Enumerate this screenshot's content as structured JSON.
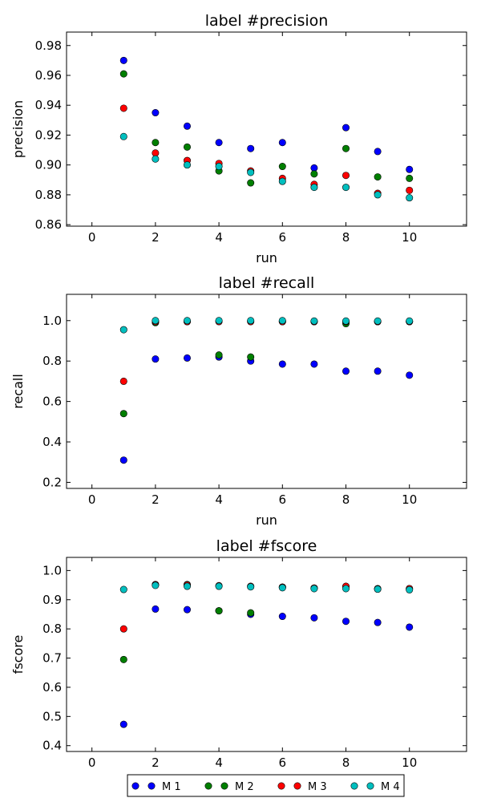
{
  "chart_data": [
    {
      "type": "scatter",
      "title": "label #precision",
      "xlabel": "run",
      "ylabel": "precision",
      "xlim": [
        -0.8,
        11.8
      ],
      "ylim": [
        0.859,
        0.989
      ],
      "xticks": [
        0,
        2,
        4,
        6,
        8,
        10
      ],
      "yticks": [
        0.86,
        0.88,
        0.9,
        0.92,
        0.94,
        0.96,
        0.98
      ],
      "ytick_labels": [
        "0.86",
        "0.88",
        "0.90",
        "0.92",
        "0.94",
        "0.96",
        "0.98"
      ],
      "x": [
        1,
        2,
        3,
        4,
        5,
        6,
        7,
        8,
        9,
        10
      ],
      "series": [
        {
          "name": "M 1",
          "color": "#0000ff",
          "values": [
            0.97,
            0.935,
            0.926,
            0.915,
            0.911,
            0.915,
            0.898,
            0.925,
            0.909,
            0.897
          ]
        },
        {
          "name": "M 2",
          "color": "#007f00",
          "values": [
            0.961,
            0.915,
            0.912,
            0.896,
            0.888,
            0.899,
            0.894,
            0.911,
            0.892,
            0.891
          ]
        },
        {
          "name": "M 3",
          "color": "#ff0000",
          "values": [
            0.938,
            0.908,
            0.903,
            0.901,
            0.896,
            0.891,
            0.887,
            0.893,
            0.881,
            0.883
          ]
        },
        {
          "name": "M 4",
          "color": "#00bfbf",
          "values": [
            0.919,
            0.904,
            0.9,
            0.899,
            0.895,
            0.889,
            0.885,
            0.885,
            0.88,
            0.878
          ]
        }
      ]
    },
    {
      "type": "scatter",
      "title": "label #recall",
      "xlabel": "run",
      "ylabel": "recall",
      "xlim": [
        -0.8,
        11.8
      ],
      "ylim": [
        0.17,
        1.13
      ],
      "xticks": [
        0,
        2,
        4,
        6,
        8,
        10
      ],
      "yticks": [
        0.2,
        0.4,
        0.6,
        0.8,
        1.0
      ],
      "ytick_labels": [
        "0.2",
        "0.4",
        "0.6",
        "0.8",
        "1.0"
      ],
      "x": [
        1,
        2,
        3,
        4,
        5,
        6,
        7,
        8,
        9,
        10
      ],
      "series": [
        {
          "name": "M 1",
          "color": "#0000ff",
          "values": [
            0.31,
            0.81,
            0.815,
            0.82,
            0.8,
            0.785,
            0.785,
            0.75,
            0.75,
            0.73
          ]
        },
        {
          "name": "M 2",
          "color": "#007f00",
          "values": [
            0.54,
            0.99,
            0.995,
            0.83,
            0.82,
            0.995,
            0.995,
            0.985,
            0.995,
            0.995
          ]
        },
        {
          "name": "M 3",
          "color": "#ff0000",
          "values": [
            0.7,
            0.995,
            0.995,
            0.995,
            0.995,
            0.995,
            0.995,
            0.995,
            0.995,
            0.995
          ]
        },
        {
          "name": "M 4",
          "color": "#00bfbf",
          "values": [
            0.955,
            1.0,
            1.0,
            1.0,
            1.0,
            1.0,
            0.998,
            0.998,
            0.998,
            0.998
          ]
        }
      ]
    },
    {
      "type": "scatter",
      "title": "label #fscore",
      "xlabel": "",
      "ylabel": "fscore",
      "xlim": [
        -0.8,
        11.8
      ],
      "ylim": [
        0.38,
        1.045
      ],
      "xticks": [
        0,
        2,
        4,
        6,
        8,
        10
      ],
      "yticks": [
        0.4,
        0.5,
        0.6,
        0.7,
        0.8,
        0.9,
        1.0
      ],
      "ytick_labels": [
        "0.4",
        "0.5",
        "0.6",
        "0.7",
        "0.8",
        "0.9",
        "1.0"
      ],
      "x": [
        1,
        2,
        3,
        4,
        5,
        6,
        7,
        8,
        9,
        10
      ],
      "series": [
        {
          "name": "M 1",
          "color": "#0000ff",
          "values": [
            0.473,
            0.868,
            0.866,
            0.862,
            0.85,
            0.843,
            0.838,
            0.826,
            0.822,
            0.806
          ]
        },
        {
          "name": "M 2",
          "color": "#007f00",
          "values": [
            0.695,
            0.952,
            0.952,
            0.862,
            0.855,
            0.943,
            0.94,
            0.945,
            0.938,
            0.938
          ]
        },
        {
          "name": "M 3",
          "color": "#ff0000",
          "values": [
            0.8,
            0.951,
            0.95,
            0.948,
            0.946,
            0.943,
            0.94,
            0.946,
            0.937,
            0.938
          ]
        },
        {
          "name": "M 4",
          "color": "#00bfbf",
          "values": [
            0.935,
            0.949,
            0.946,
            0.946,
            0.944,
            0.941,
            0.938,
            0.938,
            0.936,
            0.934
          ]
        }
      ]
    }
  ],
  "legend": {
    "placement": "bottom-center",
    "entries": [
      {
        "name": "M 1",
        "color": "#0000ff"
      },
      {
        "name": "M 2",
        "color": "#007f00"
      },
      {
        "name": "M 3",
        "color": "#ff0000"
      },
      {
        "name": "M 4",
        "color": "#00bfbf"
      }
    ]
  }
}
